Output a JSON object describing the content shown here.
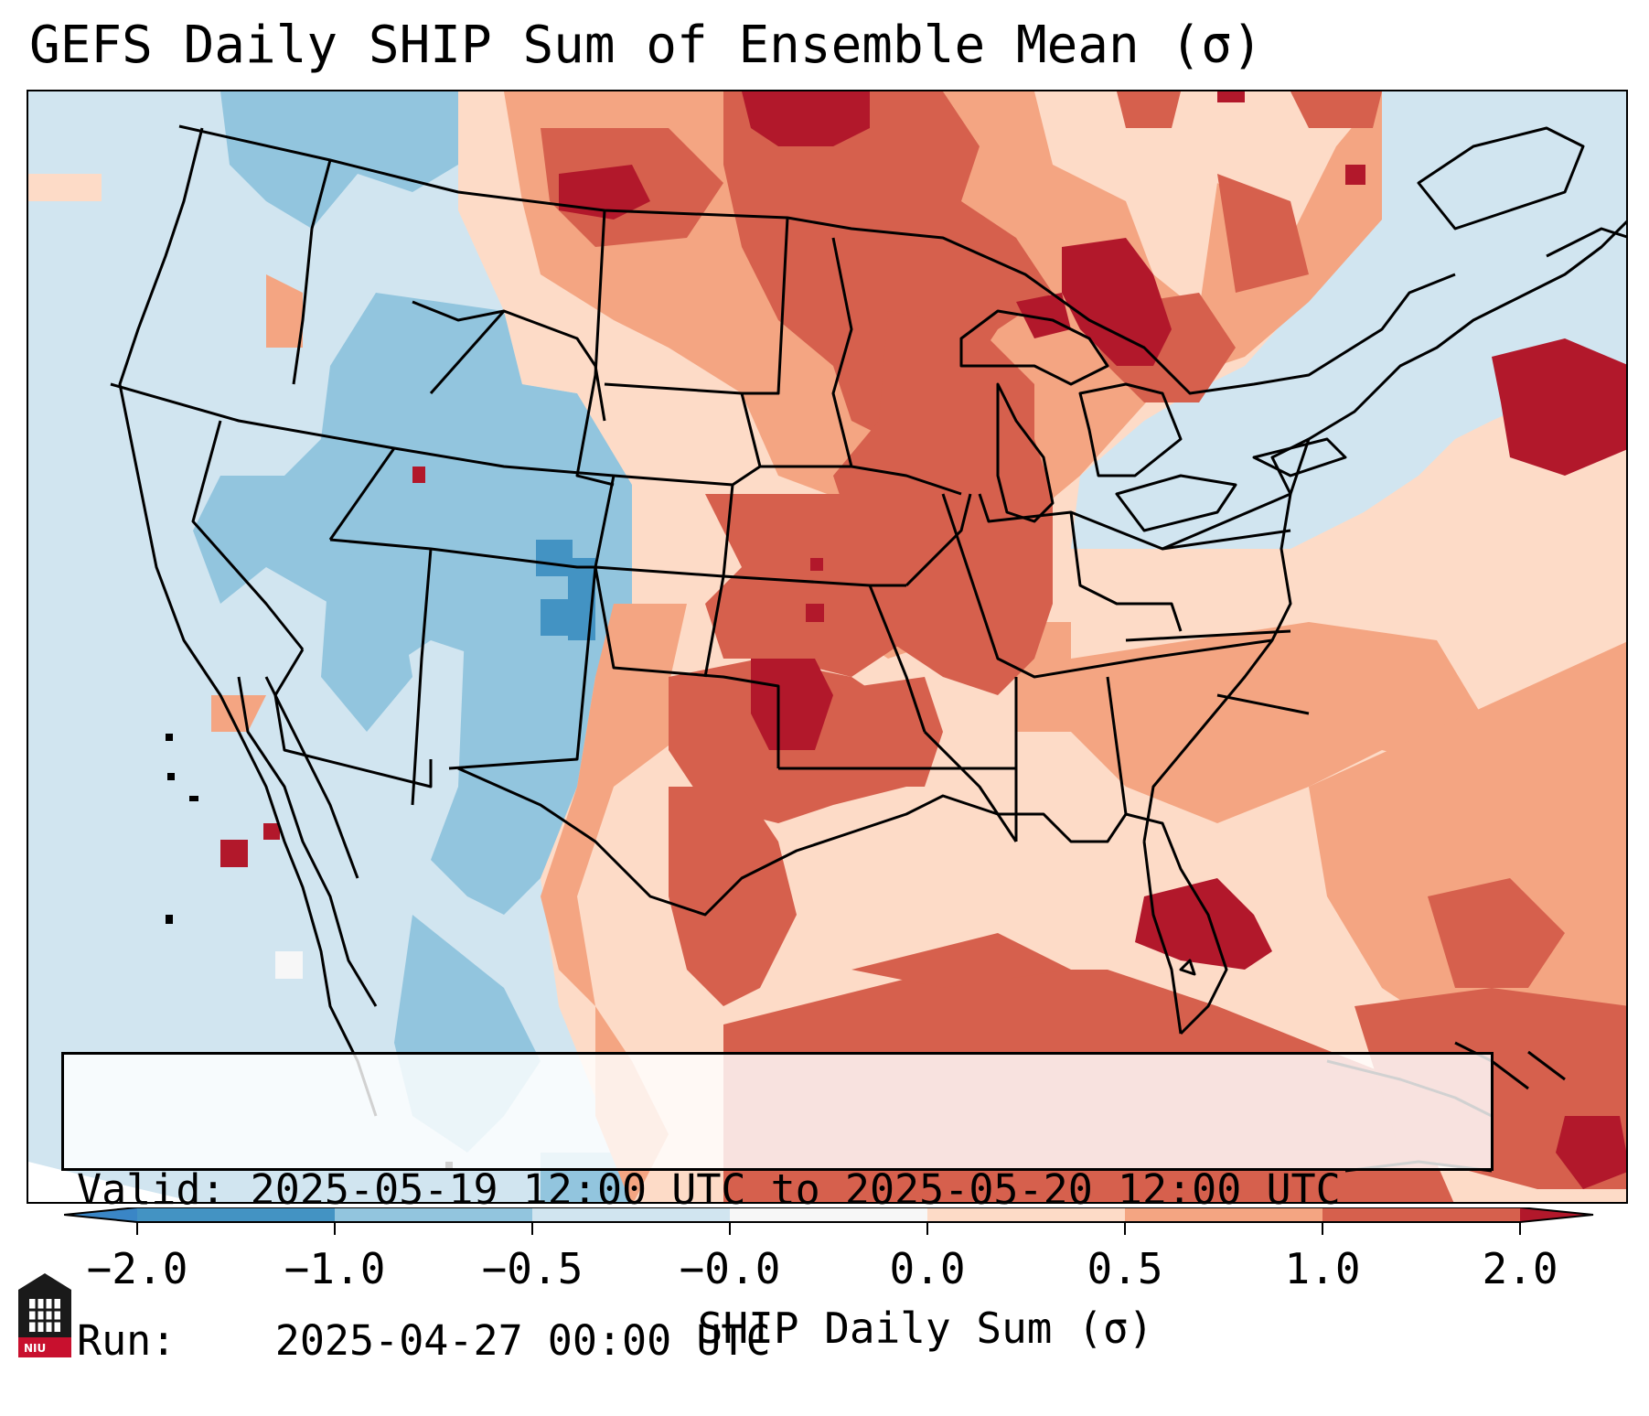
{
  "title": "GEFS Daily SHIP Sum of Ensemble Mean (σ)",
  "info": {
    "valid_label": "Valid:",
    "valid_value": "2025-05-19 12:00 UTC to 2025-05-20 12:00 UTC",
    "run_label": "Run:",
    "run_value": "2025-04-27 00:00 UTC"
  },
  "colorbar": {
    "label": "SHIP Daily Sum (σ)",
    "ticks": [
      "−2.0",
      "−1.0",
      "−0.5",
      "−0.0",
      "0.0",
      "0.5",
      "1.0",
      "2.0"
    ],
    "colors": {
      "below_min": "#3a86c6",
      "bin_m2_m1": "#4393c3",
      "bin_m1_m05": "#92c5de",
      "bin_m05_0": "#d1e5f0",
      "bin_0": "#f7f7f7",
      "bin_0_05": "#fddbc7",
      "bin_05_1": "#f4a582",
      "bin_1_2": "#d6604d",
      "above_max": "#b2182b"
    }
  },
  "logo": {
    "icon": "niu-logo-icon",
    "text": "NIU"
  }
}
